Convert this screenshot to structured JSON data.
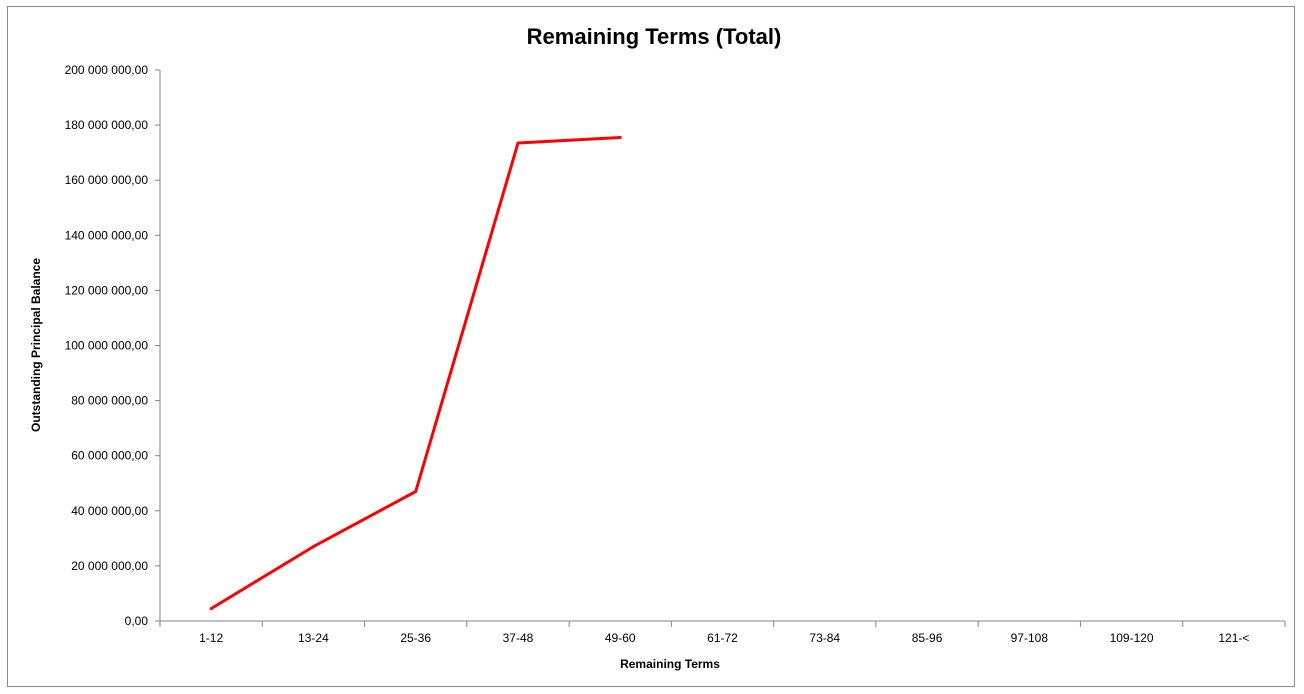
{
  "chart_data": {
    "type": "line",
    "title": "Remaining Terms (Total)",
    "xlabel": "Remaining Terms",
    "ylabel": "Outstanding Principal Balance",
    "categories": [
      "1-12",
      "13-24",
      "25-36",
      "37-48",
      "49-60",
      "61-72",
      "73-84",
      "85-96",
      "97-108",
      "109-120",
      "121-<"
    ],
    "series": [
      {
        "color": "#ff0000",
        "values": [
          4500000,
          27000000,
          47000000,
          173500000,
          175500000,
          null,
          null,
          null,
          null,
          null,
          null
        ]
      }
    ],
    "ylim": [
      0,
      200000000
    ],
    "yticks": [
      0,
      20000000,
      40000000,
      60000000,
      80000000,
      100000000,
      120000000,
      140000000,
      160000000,
      180000000,
      200000000
    ],
    "ytick_labels": [
      "0,00",
      "20 000 000,00",
      "40 000 000,00",
      "60 000 000,00",
      "80 000 000,00",
      "100 000 000,00",
      "120 000 000,00",
      "140 000 000,00",
      "160 000 000,00",
      "180 000 000,00",
      "200 000 000,00"
    ],
    "grid": false,
    "legend": "none"
  }
}
